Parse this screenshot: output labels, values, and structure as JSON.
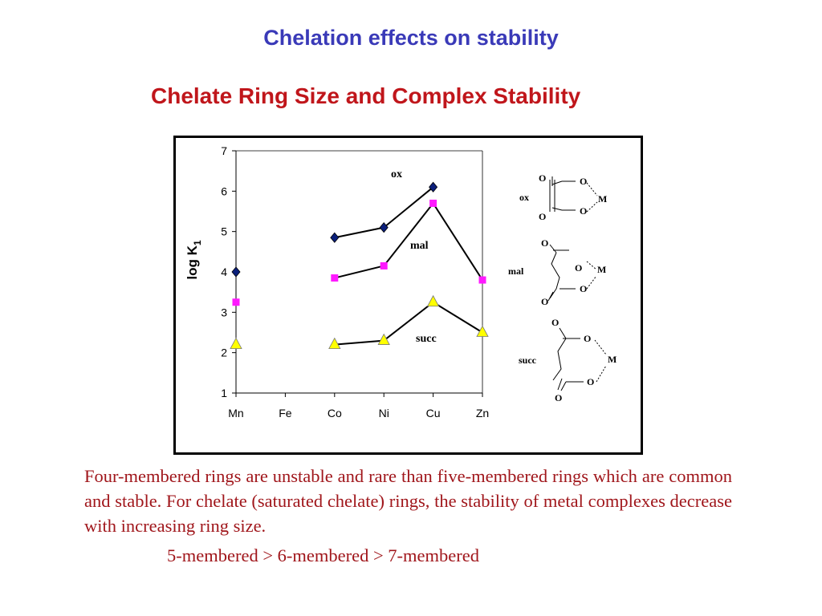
{
  "page": {
    "title": "Chelation effects on stability",
    "subtitle": "Chelate Ring Size and Complex Stability",
    "paragraph": "Four-membered rings are unstable and rare than five-membered rings which are common and stable. For chelate (saturated chelate) rings, the stability of metal complexes decrease with increasing ring size.",
    "inequality": "5-membered > 6-membered > 7-membered"
  },
  "colors": {
    "title": "#3a3ab8",
    "subtitle": "#c0161b",
    "text": "#a0161b",
    "ox": "#0b1f7a",
    "mal": "#ff19ff",
    "succ": "#ffff00"
  },
  "chart_data": {
    "type": "line",
    "ylabel": "log K",
    "ylabel_subscript": "1",
    "categories": [
      "Mn",
      "Fe",
      "Co",
      "Ni",
      "Cu",
      "Zn"
    ],
    "ylim": [
      1,
      7
    ],
    "yticks": [
      "1",
      "2",
      "3",
      "4",
      "5",
      "6",
      "7"
    ],
    "grid": false,
    "series": [
      {
        "name": "ox",
        "marker": "diamond",
        "values": [
          4.0,
          null,
          4.85,
          5.1,
          6.1,
          null
        ]
      },
      {
        "name": "mal",
        "marker": "square",
        "values": [
          3.25,
          null,
          3.85,
          4.15,
          5.7,
          3.8
        ]
      },
      {
        "name": "succ",
        "marker": "triangle",
        "values": [
          2.2,
          null,
          2.2,
          2.3,
          3.25,
          2.5
        ]
      }
    ],
    "structures": [
      {
        "label": "ox",
        "metal": "M",
        "atoms": [
          "O",
          "O",
          "O",
          "O"
        ]
      },
      {
        "label": "mal",
        "metal": "M",
        "atoms": [
          "O",
          "O",
          "O",
          "O"
        ]
      },
      {
        "label": "succ",
        "metal": "M",
        "atoms": [
          "O",
          "O",
          "O",
          "O"
        ]
      }
    ]
  }
}
